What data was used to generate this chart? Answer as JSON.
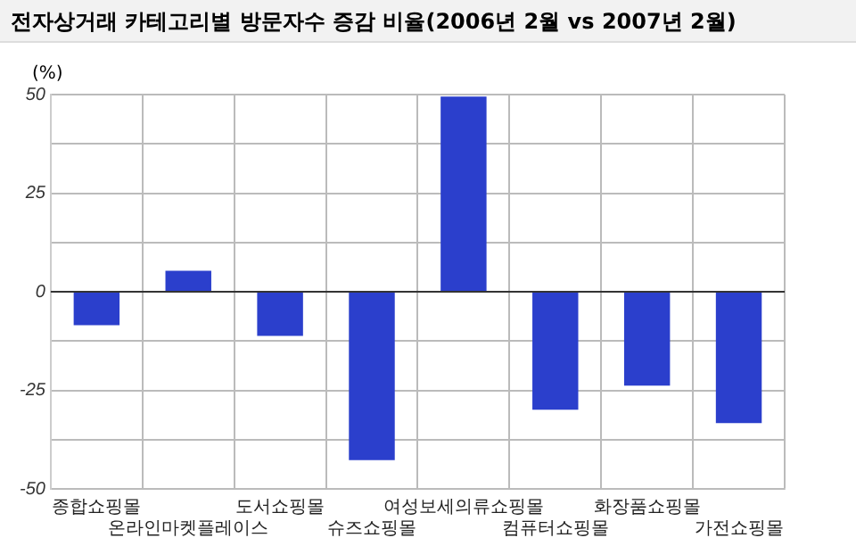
{
  "chart_data": {
    "type": "bar",
    "title": "전자상거래 카테고리별 방문자수 증감 비율(2006년 2월 vs 2007년 2월)",
    "ylabel": "(%)",
    "categories": [
      "종합쇼핑몰",
      "온라인마켓플레이스",
      "도서쇼핑몰",
      "슈즈쇼핑몰",
      "여성보세의류쇼핑몰",
      "컴퓨터쇼핑몰",
      "화장품쇼핑몰",
      "가전쇼핑몰"
    ],
    "values": [
      -8.5,
      5.3,
      -11.2,
      -42.7,
      49.5,
      -29.9,
      -23.8,
      -33.3
    ],
    "color": "#2b3fcc",
    "ylim": [
      -50,
      50
    ],
    "yticks": [
      -50,
      {
        "value": -37.5,
        "label": null
      },
      -25,
      {
        "value": -12.5,
        "label": null
      },
      0,
      {
        "value": 12.5,
        "label": null
      },
      25,
      {
        "value": 37.5,
        "label": null
      },
      50
    ],
    "grid": true,
    "legend": false
  }
}
